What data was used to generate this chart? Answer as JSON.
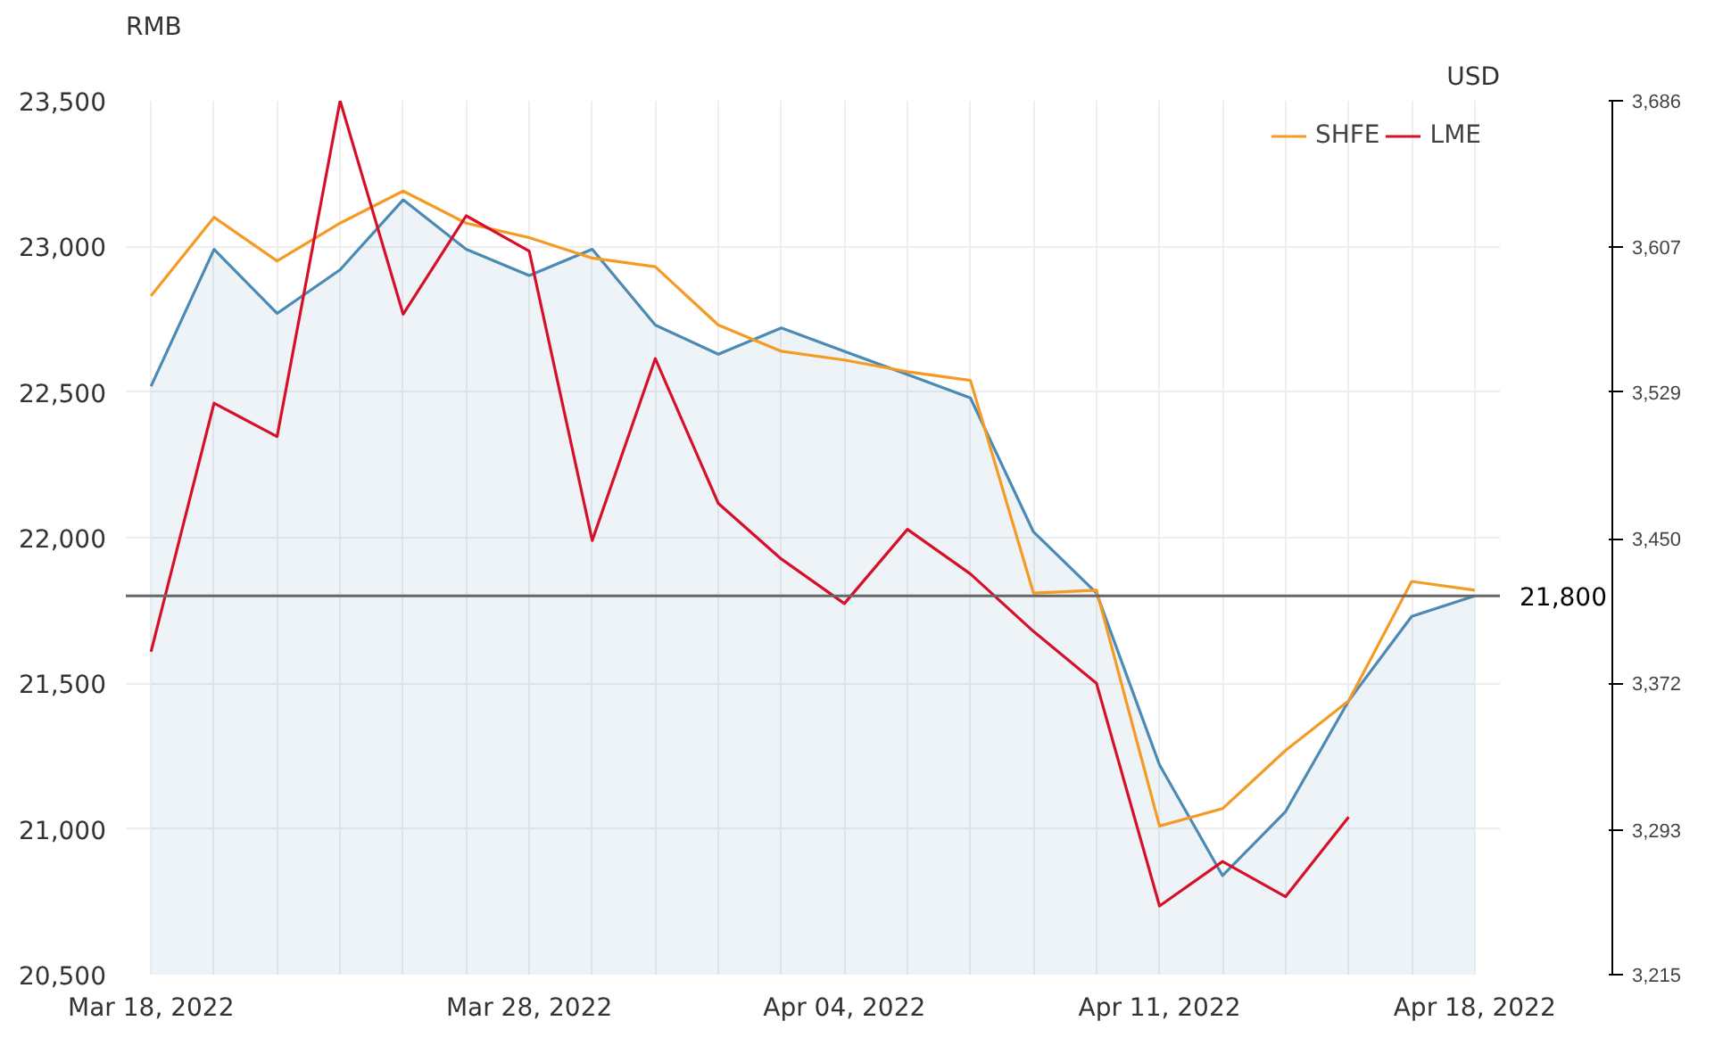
{
  "chart_data": {
    "type": "line",
    "ylabel": "RMB",
    "y2label": "USD",
    "categories": [
      "Mar 18, 2022",
      null,
      null,
      null,
      null,
      null,
      "Mar 28, 2022",
      null,
      null,
      null,
      null,
      "Apr 04, 2022",
      null,
      null,
      null,
      null,
      "Apr 11, 2022",
      null,
      null,
      null,
      null,
      "Apr 18, 2022"
    ],
    "series": [
      {
        "type": "area",
        "color": "#4a8ab5",
        "values": [
          22520,
          22990,
          22770,
          22920,
          23160,
          22990,
          22900,
          22990,
          22730,
          22630,
          22720,
          22640,
          22560,
          22480,
          22020,
          21810,
          21220,
          20840,
          21060,
          21440,
          21730,
          21800
        ]
      },
      {
        "name": "SHFE",
        "color": "#f59a23",
        "values": [
          22830,
          23100,
          22950,
          23080,
          23190,
          23080,
          23030,
          22960,
          22930,
          22730,
          22640,
          22610,
          22570,
          22540,
          21810,
          21820,
          21010,
          21070,
          21270,
          21440,
          21850,
          21820
        ]
      },
      {
        "name": "LME",
        "color": "#d7102a",
        "axis": "y2",
        "values": [
          3389,
          3523,
          3505,
          3686,
          3571,
          3624,
          3605,
          3449,
          3547,
          3469,
          3439,
          3415,
          3455,
          3431,
          3400,
          3372,
          3252,
          3276,
          3257,
          3300,
          null,
          null
        ]
      }
    ],
    "ylim": [
      20500,
      23500
    ],
    "yticks": [
      {
        "value": 20500,
        "label": "20,500"
      },
      {
        "value": 21000,
        "label": "21,000"
      },
      {
        "value": 21500,
        "label": "21,500"
      },
      {
        "value": 22000,
        "label": "22,000"
      },
      {
        "value": 22500,
        "label": "22,500"
      },
      {
        "value": 23000,
        "label": "23,000"
      },
      {
        "value": 23500,
        "label": "23,500"
      }
    ],
    "y2lim": [
      3215,
      3686
    ],
    "y2ticks": [
      {
        "value": 3215,
        "label": "3,215"
      },
      {
        "value": 3293,
        "label": "3,293"
      },
      {
        "value": 3372,
        "label": "3,372"
      },
      {
        "value": 3450,
        "label": "3,450"
      },
      {
        "value": 3529,
        "label": "3,529"
      },
      {
        "value": 3607,
        "label": "3,607"
      },
      {
        "value": 3686,
        "label": "3,686"
      }
    ],
    "ref_lines": [
      {
        "axis": "y",
        "value": 21800,
        "label": "21,800",
        "color": "#666666"
      }
    ],
    "grid": true,
    "legend": "top right",
    "marker": "none",
    "line_style": "solid"
  }
}
